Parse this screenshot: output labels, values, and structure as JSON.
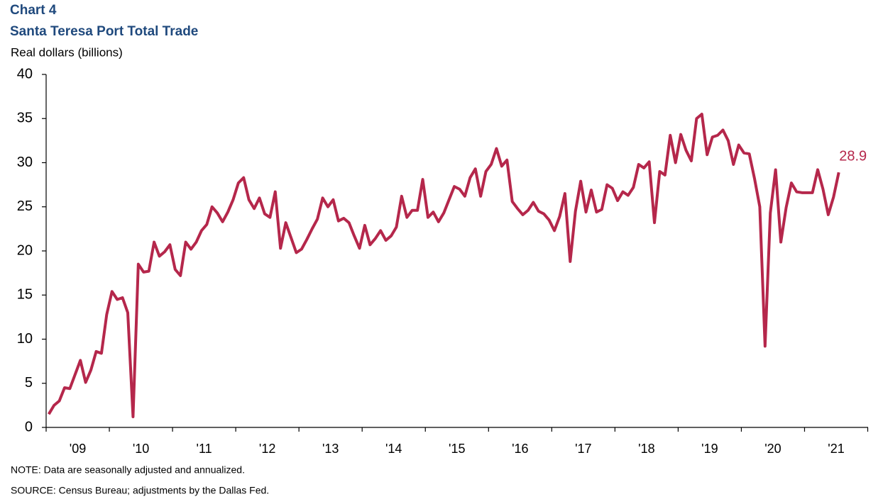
{
  "chart_data": {
    "type": "line",
    "title": "Chart 4",
    "subtitle": "Santa Teresa Port Total Trade",
    "y_label": "Real dollars (billions)",
    "notes": [
      "NOTE: Data are seasonally adjusted and annualized.",
      "SOURCE: Census Bureau; adjustments by the Dallas Fed."
    ],
    "categories": [
      "'09",
      null,
      null,
      null,
      null,
      null,
      null,
      null,
      null,
      null,
      null,
      null,
      "'10",
      null,
      null,
      null,
      null,
      null,
      null,
      null,
      null,
      null,
      null,
      null,
      "'11",
      null,
      null,
      null,
      null,
      null,
      null,
      null,
      null,
      null,
      null,
      null,
      "'12",
      null,
      null,
      null,
      null,
      null,
      null,
      null,
      null,
      null,
      null,
      null,
      "'13",
      null,
      null,
      null,
      null,
      null,
      null,
      null,
      null,
      null,
      null,
      null,
      "'14",
      null,
      null,
      null,
      null,
      null,
      null,
      null,
      null,
      null,
      null,
      null,
      "'15",
      null,
      null,
      null,
      null,
      null,
      null,
      null,
      null,
      null,
      null,
      null,
      "'16",
      null,
      null,
      null,
      null,
      null,
      null,
      null,
      null,
      null,
      null,
      null,
      "'17",
      null,
      null,
      null,
      null,
      null,
      null,
      null,
      null,
      null,
      null,
      null,
      "'18",
      null,
      null,
      null,
      null,
      null,
      null,
      null,
      null,
      null,
      null,
      null,
      "'19",
      null,
      null,
      null,
      null,
      null,
      null,
      null,
      null,
      null,
      null,
      null,
      "'20",
      null,
      null,
      null,
      null,
      null,
      null,
      null,
      null,
      null,
      null,
      null,
      "'21",
      null,
      null,
      null,
      null,
      null,
      null
    ],
    "values": [
      1.5,
      2.5,
      3.0,
      4.5,
      4.4,
      6.0,
      7.6,
      5.1,
      6.5,
      8.6,
      8.4,
      12.8,
      15.4,
      14.5,
      14.7,
      13.0,
      1.2,
      18.5,
      17.6,
      17.7,
      21.0,
      19.4,
      19.9,
      20.7,
      17.9,
      17.2,
      21.0,
      20.2,
      21.0,
      22.3,
      23.0,
      25.0,
      24.3,
      23.3,
      24.4,
      25.8,
      27.7,
      28.3,
      25.8,
      24.8,
      26.0,
      24.2,
      23.8,
      26.7,
      20.3,
      23.2,
      21.5,
      19.8,
      20.2,
      21.3,
      22.5,
      23.6,
      26.0,
      25.0,
      25.8,
      23.4,
      23.7,
      23.2,
      21.7,
      20.3,
      22.9,
      20.7,
      21.4,
      22.3,
      21.2,
      21.7,
      22.7,
      26.2,
      23.8,
      24.6,
      24.6,
      28.1,
      23.8,
      24.4,
      23.3,
      24.3,
      25.8,
      27.3,
      27.0,
      26.2,
      28.3,
      29.3,
      26.2,
      29.0,
      29.8,
      31.6,
      29.6,
      30.3,
      25.6,
      24.8,
      24.1,
      24.6,
      25.5,
      24.5,
      24.2,
      23.5,
      22.3,
      23.9,
      26.5,
      18.8,
      24.5,
      27.9,
      24.4,
      26.9,
      24.4,
      24.7,
      27.5,
      27.1,
      25.7,
      26.7,
      26.3,
      27.2,
      29.8,
      29.4,
      30.1,
      23.2,
      29.0,
      28.6,
      33.1,
      30.0,
      33.2,
      31.4,
      30.2,
      35.0,
      35.5,
      30.9,
      32.9,
      33.1,
      33.7,
      32.5,
      29.8,
      32.0,
      31.1,
      31.0,
      28.2,
      25.0,
      9.2,
      24.3,
      29.2,
      21.0,
      24.9,
      27.7,
      26.7,
      26.6,
      26.6,
      26.6,
      29.2,
      27.0,
      24.1,
      26.1,
      28.9
    ],
    "color": "#b5274b",
    "ylim": [
      0,
      40
    ],
    "yticks": [
      0,
      5,
      10,
      15,
      20,
      25,
      30,
      35,
      40
    ],
    "grid": false
  }
}
